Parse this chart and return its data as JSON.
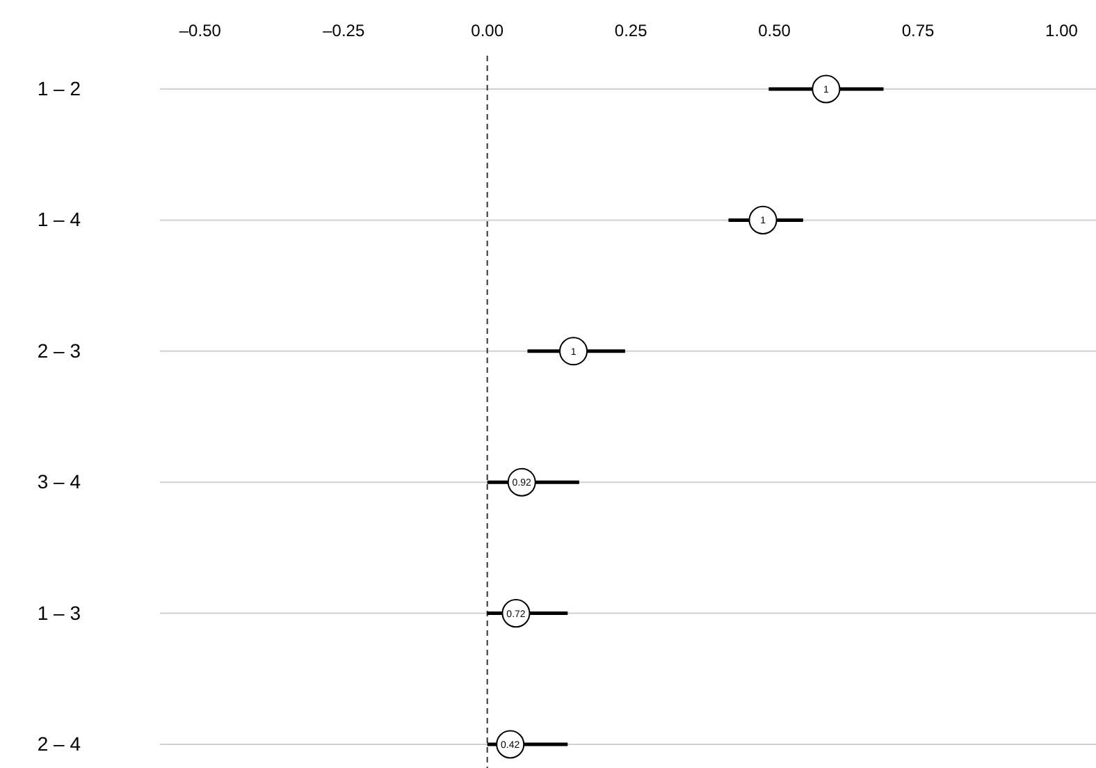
{
  "chart_data": {
    "type": "scatter",
    "orientation": "horizontal",
    "categories": [
      "1 – 2",
      "1 – 4",
      "2 – 3",
      "3 – 4",
      "1 – 3",
      "2 – 4"
    ],
    "values": [
      0.59,
      0.48,
      0.15,
      0.06,
      0.05,
      0.04
    ],
    "errors": [
      [
        0.49,
        0.69
      ],
      [
        0.42,
        0.55
      ],
      [
        0.07,
        0.24
      ],
      [
        0,
        0.16
      ],
      [
        0,
        0.14
      ],
      [
        0,
        0.14
      ]
    ],
    "annotations": [
      {
        "text": "1",
        "x": 0.59,
        "y": "1 – 2"
      },
      {
        "text": "1",
        "x": 0.48,
        "y": "1 – 4"
      },
      {
        "text": "1",
        "x": 0.15,
        "y": "2 – 3"
      },
      {
        "text": "0.92",
        "x": 0.06,
        "y": "3 – 4"
      },
      {
        "text": "0.72",
        "x": 0.05,
        "y": "1 – 3"
      },
      {
        "text": "0.42",
        "x": 0.04,
        "y": "2 – 4"
      }
    ],
    "color": "#000000",
    "xlim": [
      -0.57,
      1.06
    ],
    "xticks": [
      {
        "value": -0.5,
        "label": "–0.50"
      },
      {
        "value": -0.25,
        "label": "–0.25"
      },
      {
        "value": 0,
        "label": "0.00"
      },
      {
        "value": 0.25,
        "label": "0.25"
      },
      {
        "value": 0.5,
        "label": "0.50"
      },
      {
        "value": 0.75,
        "label": "0.75"
      },
      {
        "value": 1,
        "label": "1.00"
      }
    ],
    "grid": "y",
    "marker": "circle",
    "ref_lines": [
      {
        "axis": "x",
        "value": 0,
        "line_style": "dashed",
        "color": "#333333"
      }
    ]
  }
}
